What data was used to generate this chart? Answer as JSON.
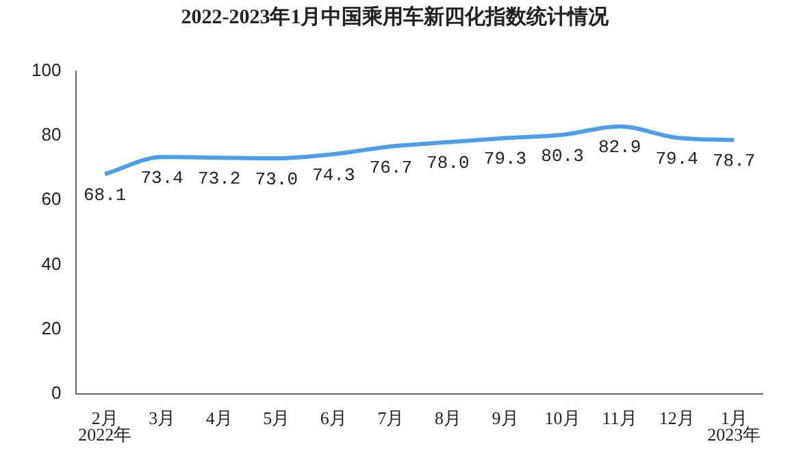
{
  "chart_data": {
    "type": "line",
    "title": "2022-2023年1月中国乘用车新四化指数统计情况",
    "categories": [
      "2月",
      "3月",
      "4月",
      "5月",
      "6月",
      "7月",
      "8月",
      "9月",
      "10月",
      "11月",
      "12月",
      "1月"
    ],
    "values": [
      68.1,
      73.4,
      73.2,
      73.0,
      74.3,
      76.7,
      78.0,
      79.3,
      80.3,
      82.9,
      79.4,
      78.7
    ],
    "value_labels": [
      "68.1",
      "73.4",
      "73.2",
      "73.0",
      "74.3",
      "76.7",
      "78.0",
      "79.3",
      "80.3",
      "82.9",
      "79.4",
      "78.7"
    ],
    "color": "#4a9fe8",
    "ylim": [
      0,
      100
    ],
    "yticks": [
      0,
      20,
      40,
      60,
      80,
      100
    ],
    "annotations": [
      "2022年",
      "2023年"
    ]
  }
}
